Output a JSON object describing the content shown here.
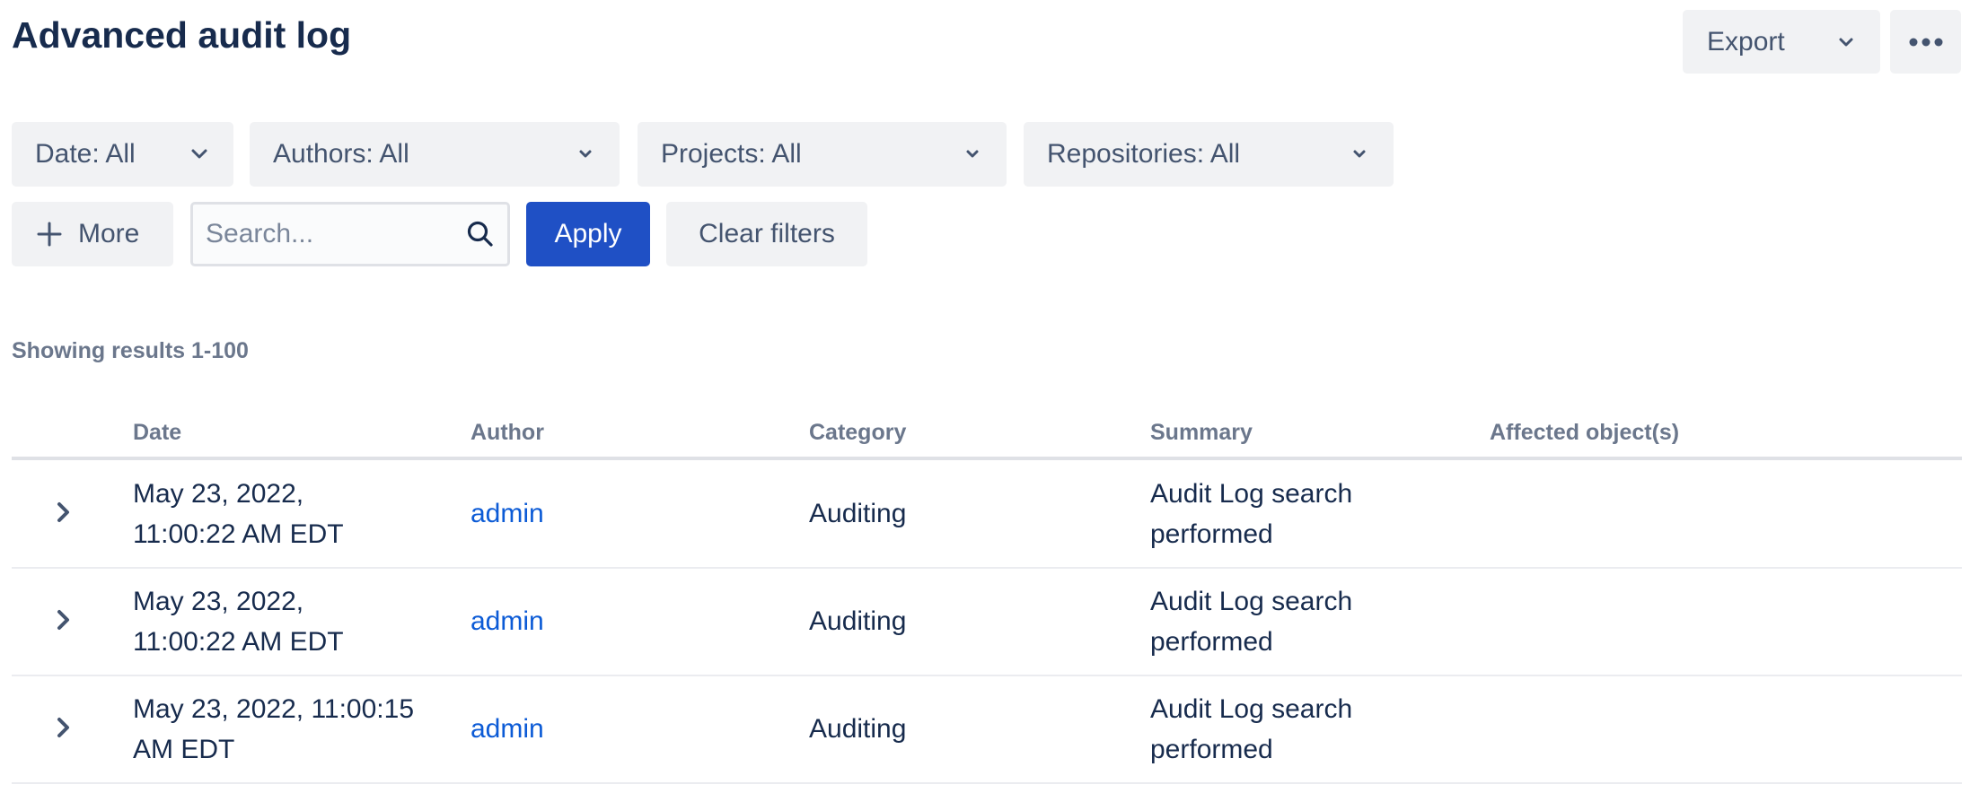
{
  "header": {
    "title": "Advanced audit log",
    "export_label": "Export",
    "more_actions_icon": "ellipsis-icon"
  },
  "filters": {
    "date": "Date: All",
    "authors": "Authors: All",
    "projects": "Projects: All",
    "repositories": "Repositories: All",
    "more_label": "More",
    "search_placeholder": "Search...",
    "search_value": "",
    "apply_label": "Apply",
    "clear_label": "Clear filters"
  },
  "colors": {
    "primary": "#1F50C5",
    "link": "#0C5BD6",
    "text": "#172B4D",
    "muted": "#6B778C",
    "button_bg": "#F1F2F4"
  },
  "results_text": "Showing results 1-100",
  "table": {
    "columns": [
      "Date",
      "Author",
      "Category",
      "Summary",
      "Affected object(s)"
    ],
    "rows": [
      {
        "date_l1": "May 23, 2022,",
        "date_l2": "11:00:22 AM EDT",
        "author": "admin",
        "category": "Auditing",
        "summary_l1": "Audit Log search",
        "summary_l2": "performed",
        "affected": ""
      },
      {
        "date_l1": "May 23, 2022,",
        "date_l2": "11:00:22 AM EDT",
        "author": "admin",
        "category": "Auditing",
        "summary_l1": "Audit Log search",
        "summary_l2": "performed",
        "affected": ""
      },
      {
        "date_l1": "May 23, 2022, 11:00:15",
        "date_l2": "AM EDT",
        "author": "admin",
        "category": "Auditing",
        "summary_l1": "Audit Log search",
        "summary_l2": "performed",
        "affected": ""
      }
    ]
  }
}
